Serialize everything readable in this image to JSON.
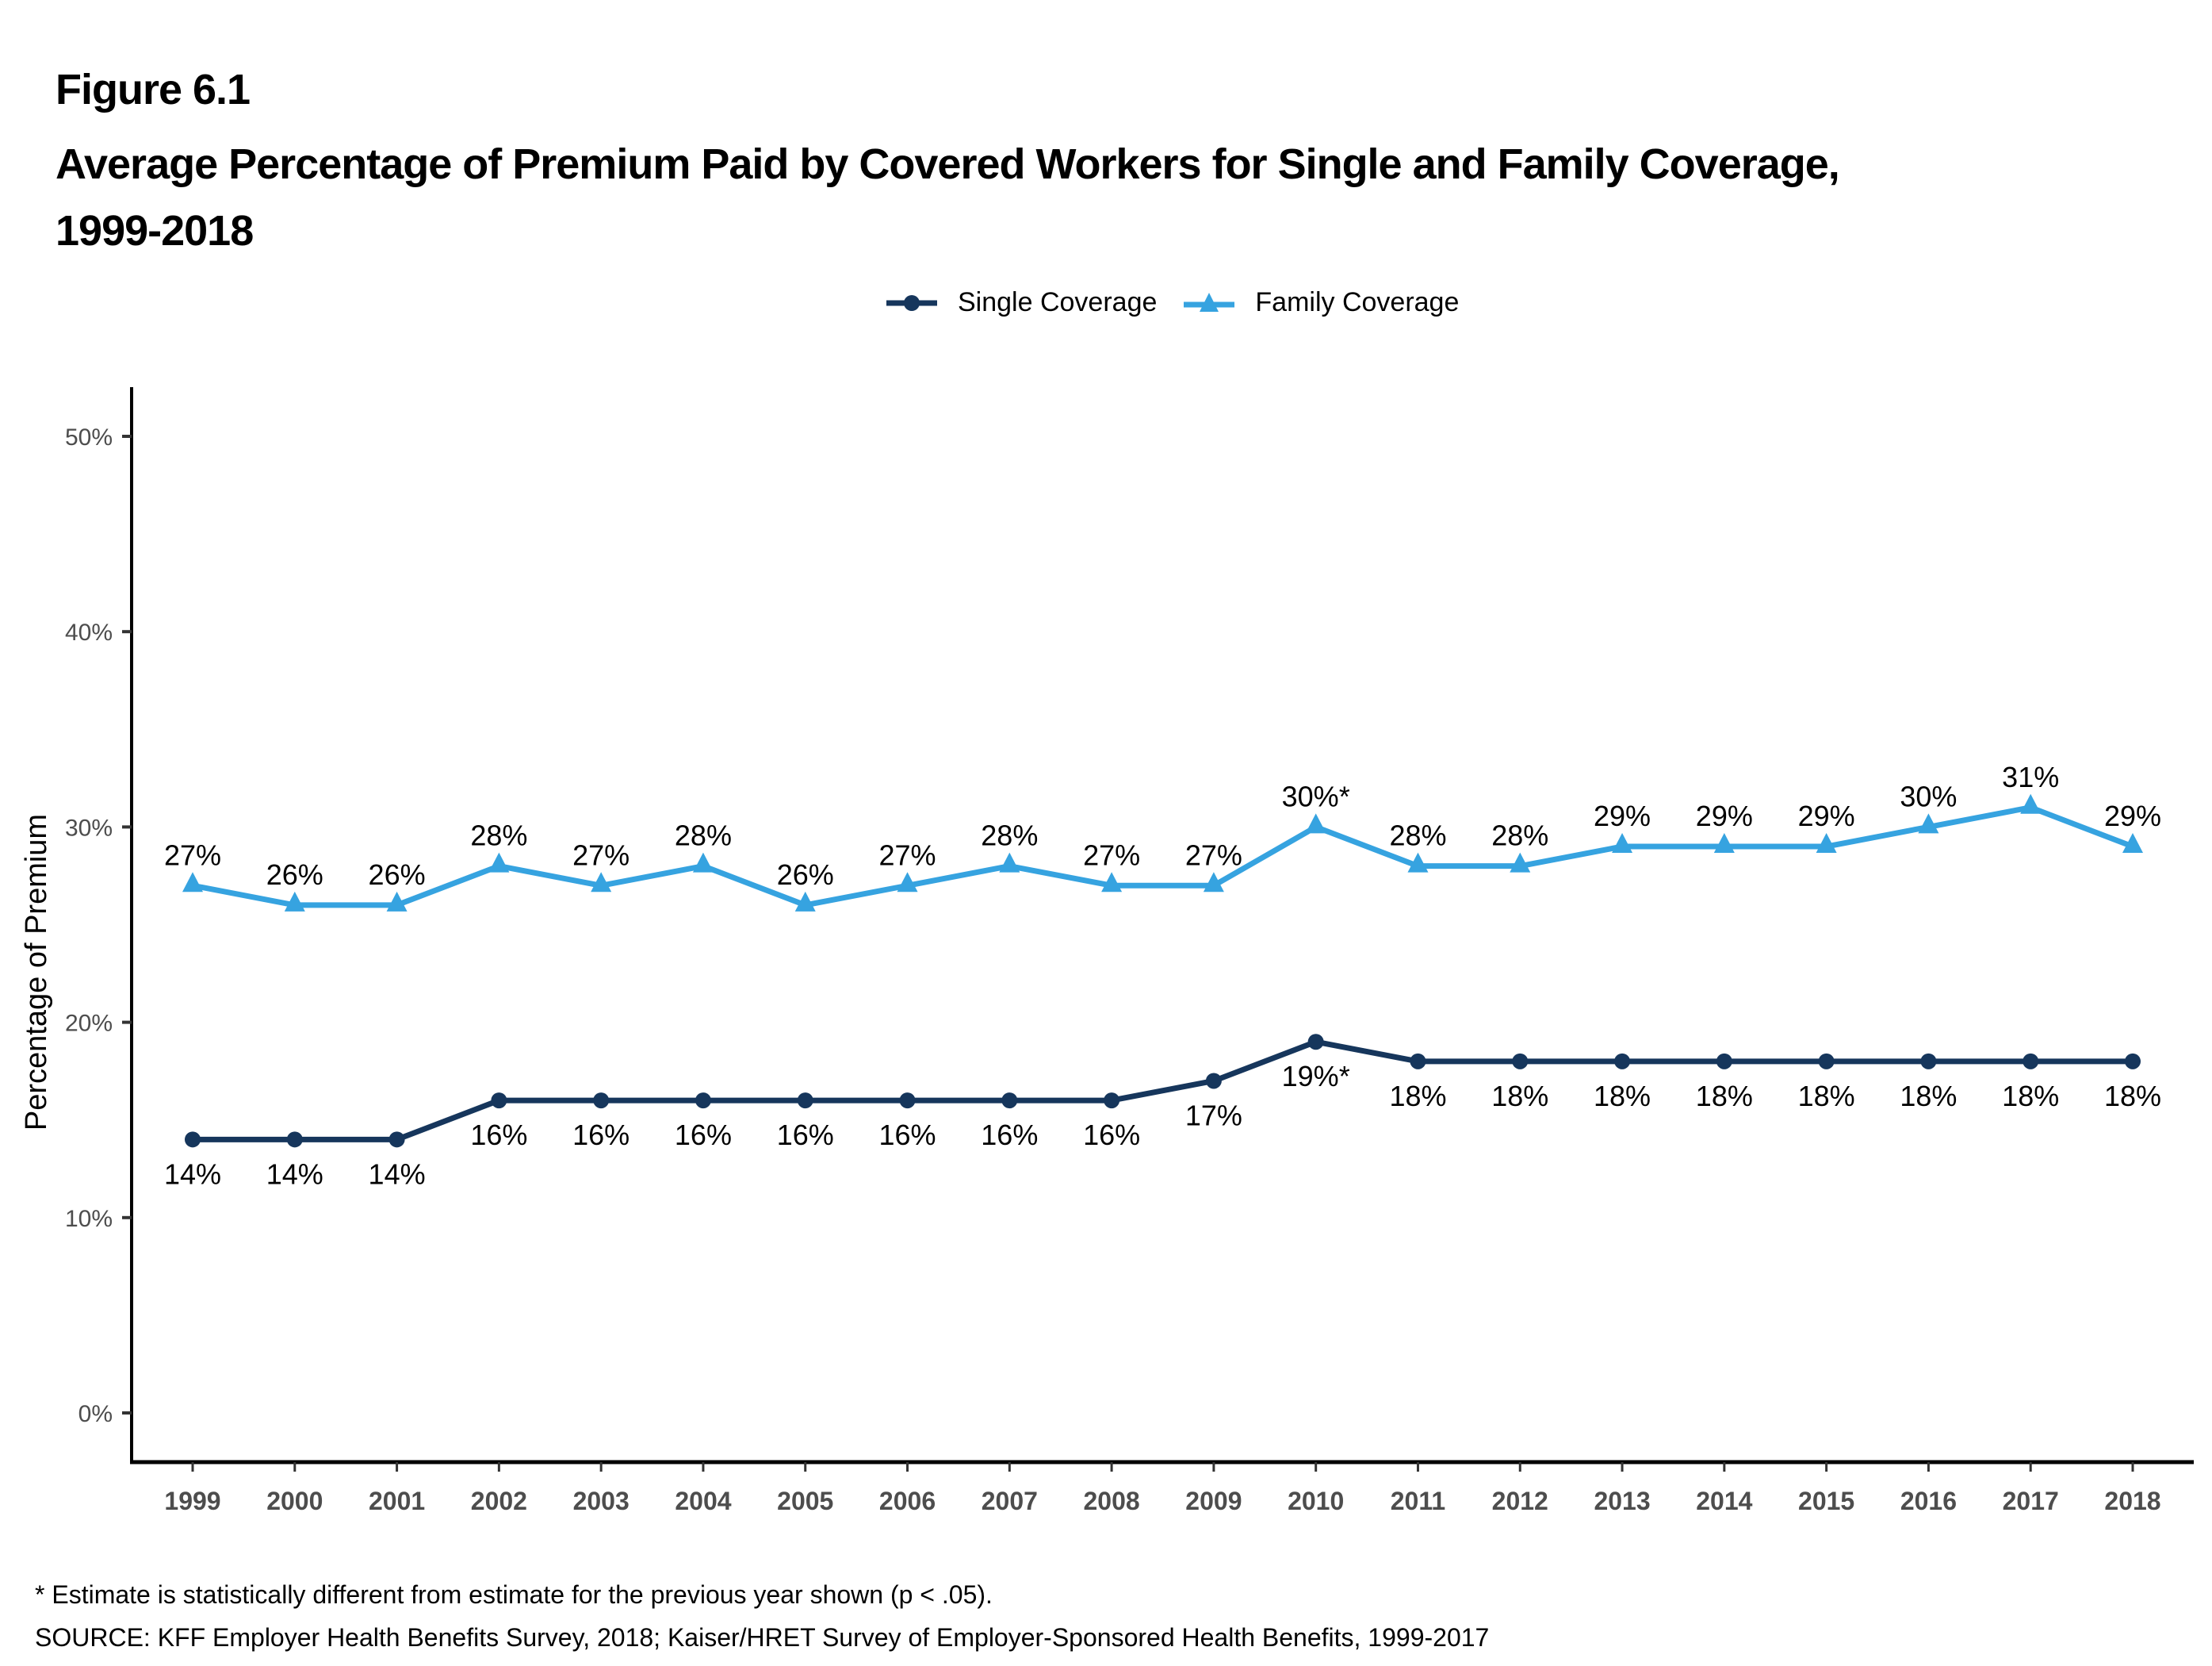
{
  "figure_label": "Figure 6.1",
  "title_line1": "Average Percentage of Premium Paid by Covered Workers for Single and Family Coverage,",
  "title_line2": "1999-2018",
  "footnote": "* Estimate is statistically different from estimate for the previous year shown (p < .05).",
  "source": "SOURCE: KFF Employer Health Benefits Survey, 2018; Kaiser/HRET Survey of Employer-Sponsored Health Benefits, 1999-2017",
  "chart_data": {
    "type": "line",
    "title": "Average Percentage of Premium Paid by Covered Workers for Single and Family Coverage, 1999-2018",
    "xlabel": "",
    "ylabel": "Percentage of Premium",
    "ylim": [
      0,
      50
    ],
    "yticks": [
      0,
      10,
      20,
      30,
      40,
      50
    ],
    "ytick_labels": [
      "0%",
      "10%",
      "20%",
      "30%",
      "40%",
      "50%"
    ],
    "grid": false,
    "legend_position": "top-center",
    "x": [
      "1999",
      "2000",
      "2001",
      "2002",
      "2003",
      "2004",
      "2005",
      "2006",
      "2007",
      "2008",
      "2009",
      "2010",
      "2011",
      "2012",
      "2013",
      "2014",
      "2015",
      "2016",
      "2017",
      "2018"
    ],
    "series": [
      {
        "name": "Single Coverage",
        "marker": "circle",
        "color": "#16365c",
        "label_position": "below",
        "values": [
          14,
          14,
          14,
          16,
          16,
          16,
          16,
          16,
          16,
          16,
          17,
          19,
          18,
          18,
          18,
          18,
          18,
          18,
          18,
          18
        ],
        "labels": [
          "14%",
          "14%",
          "14%",
          "16%",
          "16%",
          "16%",
          "16%",
          "16%",
          "16%",
          "16%",
          "17%",
          "19%*",
          "18%",
          "18%",
          "18%",
          "18%",
          "18%",
          "18%",
          "18%",
          "18%"
        ]
      },
      {
        "name": "Family Coverage",
        "marker": "triangle",
        "color": "#36a3e0",
        "label_position": "above",
        "values": [
          27,
          26,
          26,
          28,
          27,
          28,
          26,
          27,
          28,
          27,
          27,
          30,
          28,
          28,
          29,
          29,
          29,
          30,
          31,
          29
        ],
        "labels": [
          "27%",
          "26%",
          "26%",
          "28%",
          "27%",
          "28%",
          "26%",
          "27%",
          "28%",
          "27%",
          "27%",
          "30%*",
          "28%",
          "28%",
          "29%",
          "29%",
          "29%",
          "30%",
          "31%",
          "29%"
        ]
      }
    ]
  }
}
